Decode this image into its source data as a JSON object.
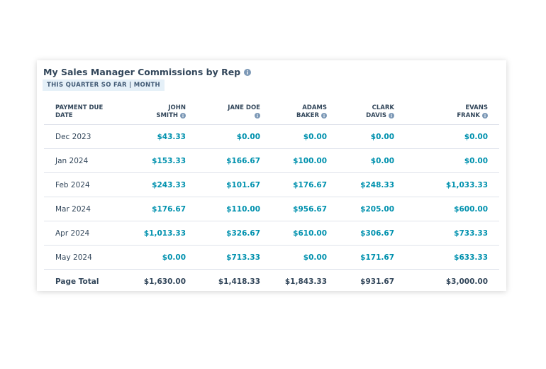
{
  "header": {
    "title": "My Sales Manager Commissions by Rep",
    "badge": "THIS QUARTER SO FAR | MONTH"
  },
  "table": {
    "columns": [
      "PAYMENT DUE DATE",
      "JOHN SMITH",
      "JANE DOE",
      "ADAMS BAKER",
      "CLARK DAVIS",
      "EVANS FRANK"
    ],
    "rows": [
      [
        "Dec 2023",
        "$43.33",
        "$0.00",
        "$0.00",
        "$0.00",
        "$0.00"
      ],
      [
        "Jan 2024",
        "$153.33",
        "$166.67",
        "$100.00",
        "$0.00",
        "$0.00"
      ],
      [
        "Feb 2024",
        "$243.33",
        "$101.67",
        "$176.67",
        "$248.33",
        "$1,033.33"
      ],
      [
        "Mar 2024",
        "$176.67",
        "$110.00",
        "$956.67",
        "$205.00",
        "$600.00"
      ],
      [
        "Apr 2024",
        "$1,013.33",
        "$326.67",
        "$610.00",
        "$306.67",
        "$733.33"
      ],
      [
        "May 2024",
        "$0.00",
        "$713.33",
        "$0.00",
        "$171.67",
        "$633.33"
      ]
    ],
    "footer": [
      "Page Total",
      "$1,630.00",
      "$1,418.33",
      "$1,843.33",
      "$931.67",
      "$3,000.00"
    ]
  }
}
